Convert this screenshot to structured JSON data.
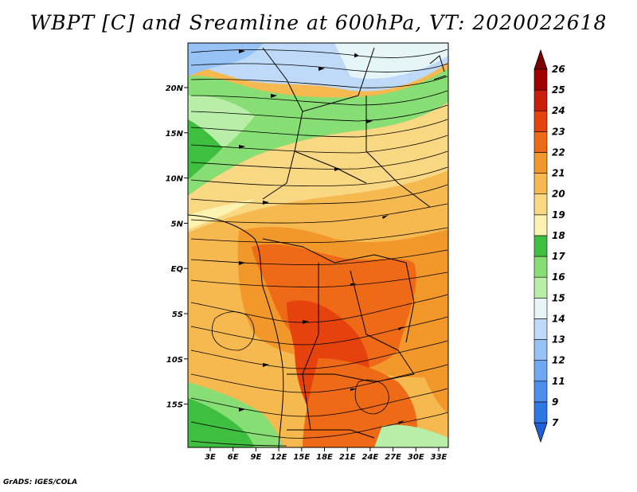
{
  "title": "WBPT [C] and Sreamline at 600hPa, VT: 2020022618",
  "credit": "GrADS: IGES/COLA",
  "map": {
    "variable": "WBPT",
    "units": "C",
    "level": "600hPa",
    "valid_time": "2020022618",
    "lat_ticks": [
      "20N",
      "15N",
      "10N",
      "5N",
      "EQ",
      "5S",
      "10S",
      "15S"
    ],
    "lon_ticks": [
      "3E",
      "6E",
      "9E",
      "12E",
      "15E",
      "18E",
      "21E",
      "24E",
      "27E",
      "30E",
      "33E"
    ],
    "regions": [
      {
        "name": "north-cool",
        "band": "14-16"
      },
      {
        "name": "sahel-green",
        "band": "16-18"
      },
      {
        "name": "central-warm",
        "band": "20-22"
      },
      {
        "name": "congo-hot",
        "band": "22-24"
      },
      {
        "name": "southwest-green",
        "band": "16-18"
      }
    ]
  },
  "colorbar": {
    "labels": [
      "7",
      "9",
      "11",
      "12",
      "13",
      "14",
      "15",
      "16",
      "17",
      "18",
      "19",
      "20",
      "21",
      "22",
      "23",
      "24",
      "25",
      "26"
    ],
    "colors": [
      "#1f5fd8",
      "#2e78e6",
      "#4a90ee",
      "#6ea8f2",
      "#96c2f6",
      "#bfdaf8",
      "#e6f5f8",
      "#b8eea8",
      "#86de74",
      "#3fbf3f",
      "#fdf3b0",
      "#f9d883",
      "#f5b94f",
      "#f2972a",
      "#ee6a16",
      "#e6420e",
      "#c81e0a",
      "#a00000",
      "#7a0000"
    ]
  }
}
